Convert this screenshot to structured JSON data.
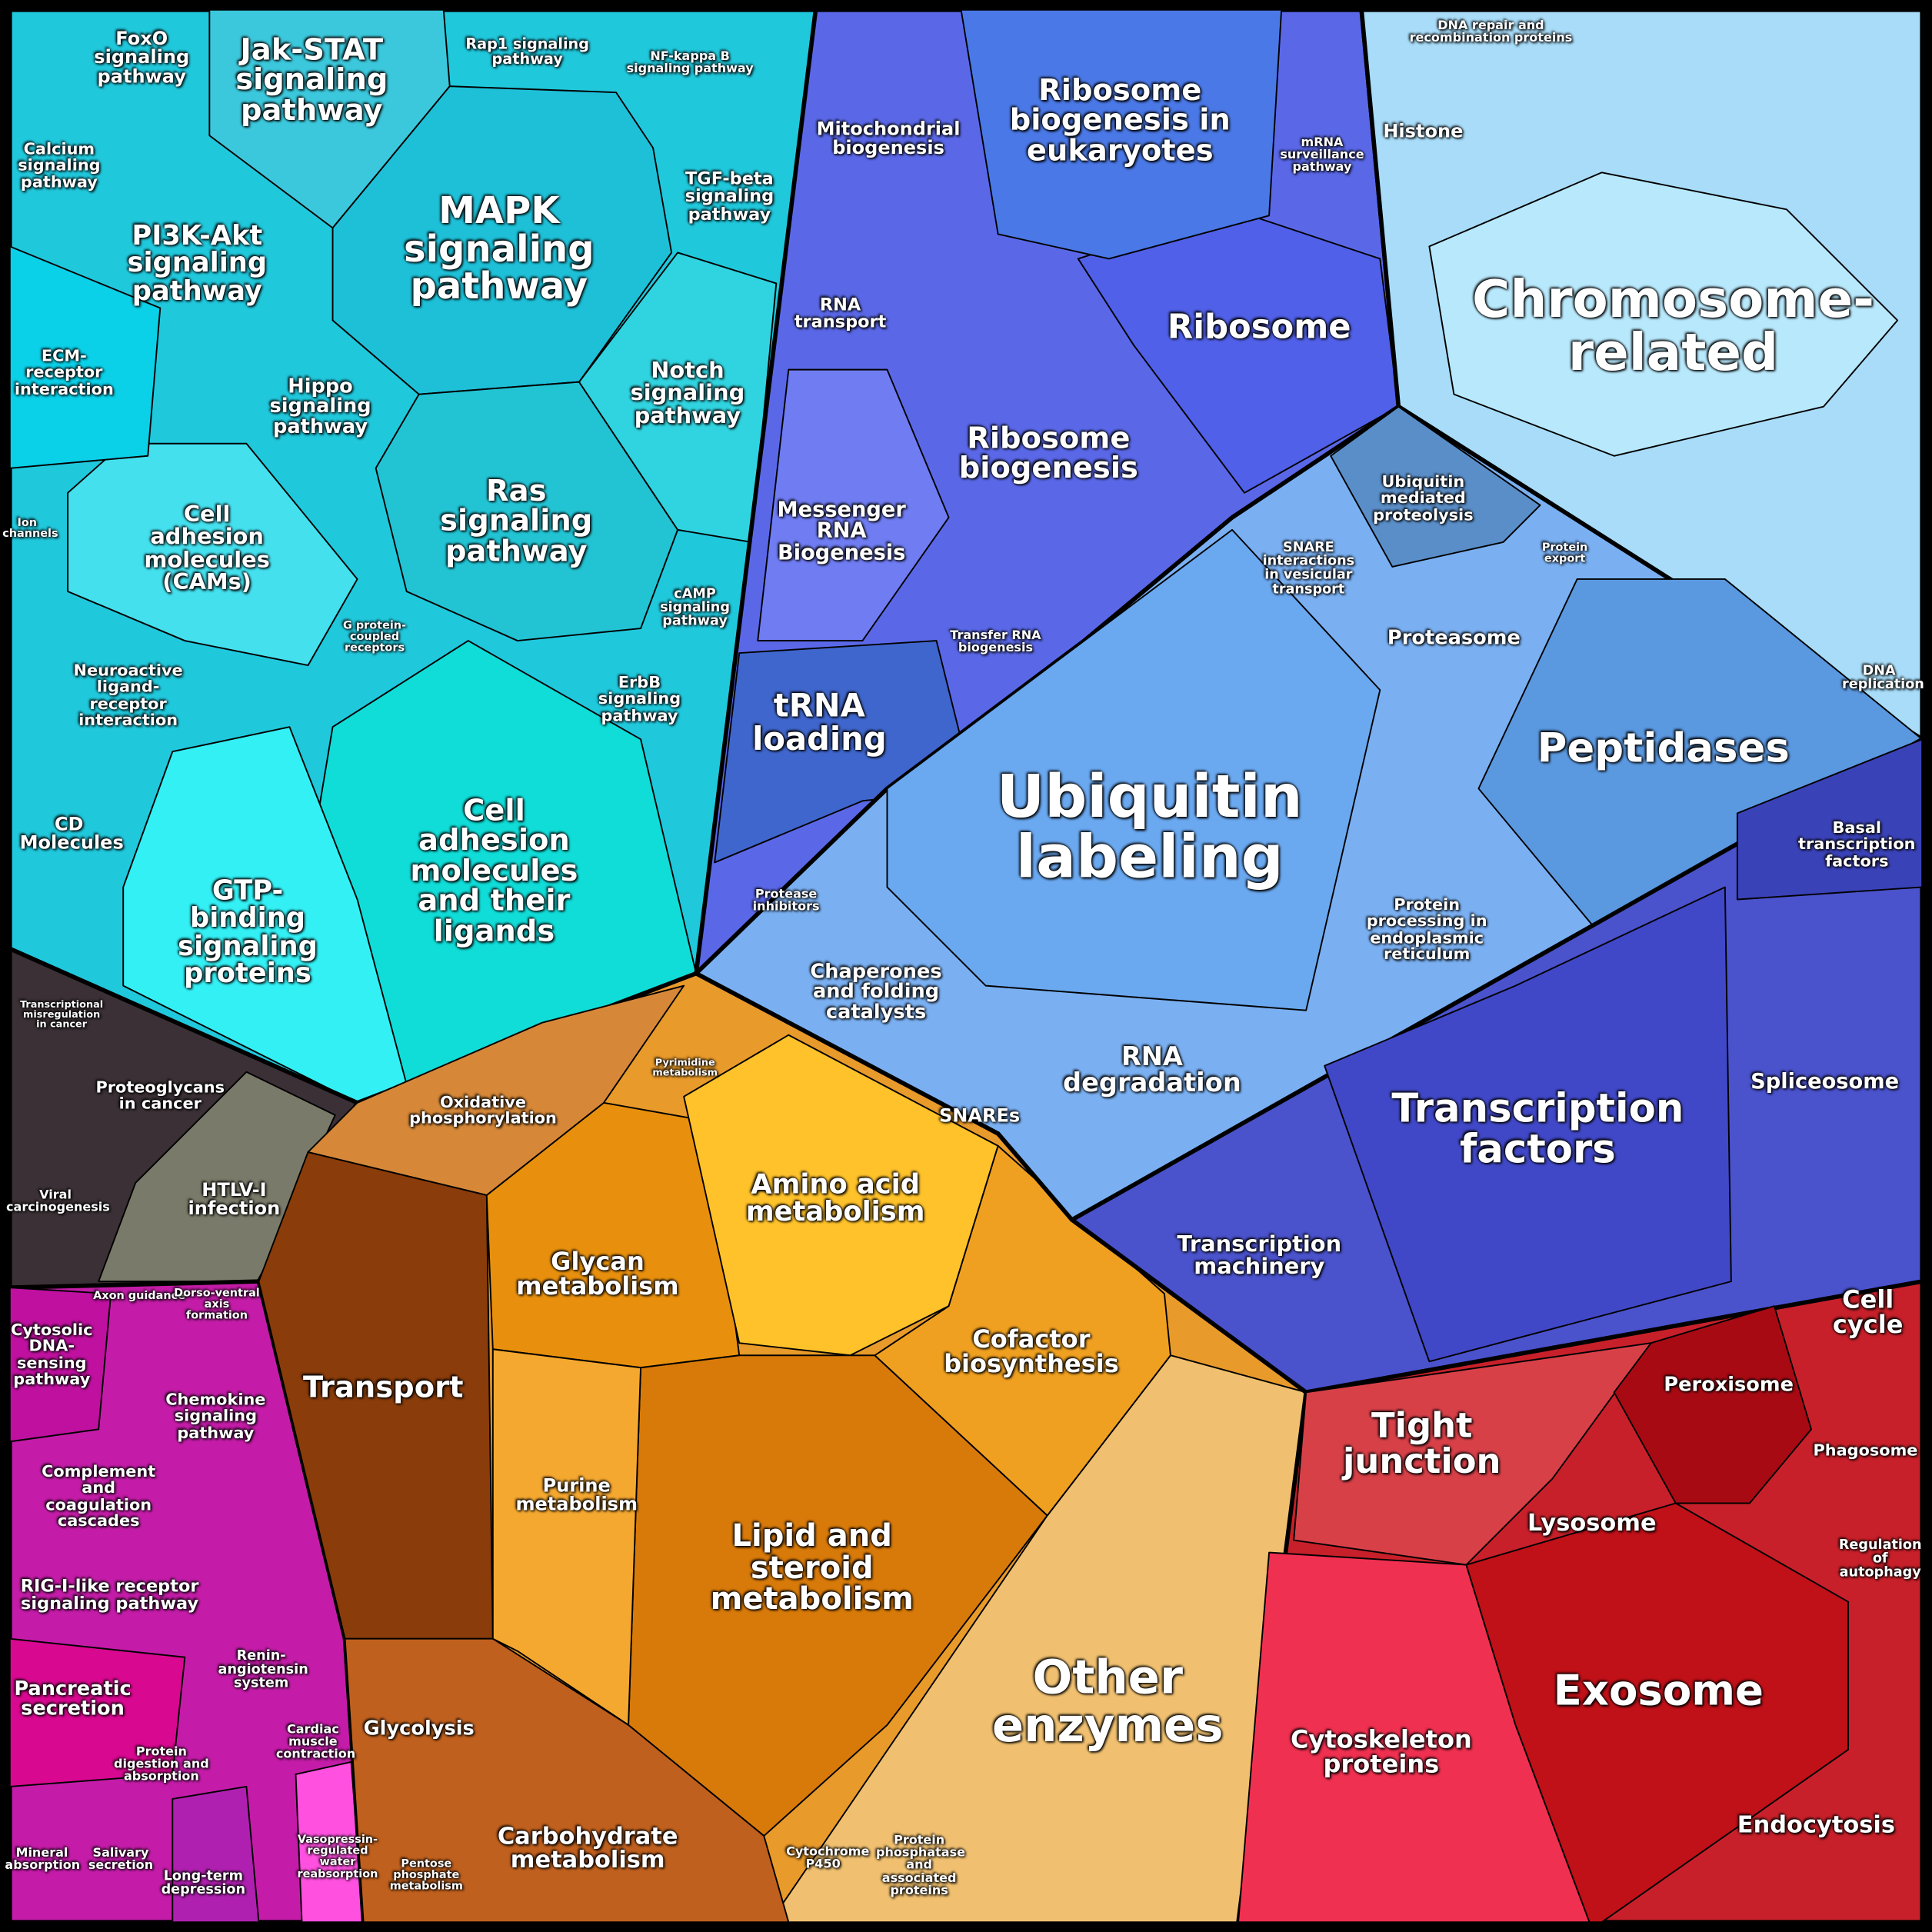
{
  "labels": [
    "FoxO signaling pathway",
    "Jak-STAT signaling pathway",
    "Rap1 signaling pathway",
    "NF-kappa B signaling pathway",
    "Calcium signaling pathway",
    "PI3K-Akt signaling pathway",
    "MAPK signaling pathway",
    "TGF-beta signaling pathway",
    "ECM-receptor interaction",
    "Hippo signaling pathway",
    "Notch signaling pathway",
    "Ras signaling pathway",
    "Cell adhesion molecules (CAMs)",
    "Ion channels",
    "cAMP signaling pathway",
    "G protein-coupled receptors",
    "Neuroactive ligand-receptor interaction",
    "ErbB signaling pathway",
    "CD Molecules",
    "Cell adhesion molecules and their ligands",
    "GTP-binding signaling proteins",
    "Transcriptional misregulation in cancer",
    "Proteoglycans in cancer",
    "HTLV-I infection",
    "Viral carcinogenesis",
    "Axon guidance",
    "Dorso-ventral axis formation",
    "Cytosolic DNA-sensing pathway",
    "Chemokine signaling pathway",
    "Complement and coagulation cascades",
    "RIG-I-like receptor signaling pathway",
    "Renin-angiotensin system",
    "Pancreatic secretion",
    "Cardiac muscle contraction",
    "Protein digestion and absorption",
    "Mineral absorption",
    "Salivary secretion",
    "Long-term depression",
    "Vasopressin-regulated water reabsorption",
    "Oxidative phosphorylation",
    "Pyrimidine metabolism",
    "Amino acid metabolism",
    "Glycan metabolism",
    "Transport",
    "Cofactor biosynthesis",
    "Purine metabolism",
    "Lipid and steroid metabolism",
    "Glycolysis",
    "Other enzymes",
    "Carbohydrate metabolism",
    "Pentose phosphate metabolism",
    "Cytochrome P450",
    "Protein phosphatase and associated proteins",
    "Mitochondrial biogenesis",
    "Ribosome biogenesis in eukaryotes",
    "mRNA surveillance pathway",
    "Histone",
    "DNA repair and recombination proteins",
    "Chromosome-related",
    "RNA transport",
    "Ribosome",
    "Ribosome biogenesis",
    "Messenger RNA Biogenesis",
    "Ubiquitin mediated proteolysis",
    "SNARE interactions in vesicular transport",
    "Protein export",
    "Transfer RNA biogenesis",
    "Proteasome",
    "DNA replication",
    "tRNA loading",
    "Peptidases",
    "Ubiquitin labeling",
    "Basal transcription factors",
    "Protease inhibitors",
    "Protein processing in endoplasmic reticulum",
    "Chaperones and folding catalysts",
    "RNA degradation",
    "SNAREs",
    "Transcription factors",
    "Spliceosome",
    "Transcription machinery",
    "Cell cycle",
    "Peroxisome",
    "Tight junction",
    "Phagosome",
    "Lysosome",
    "Regulation of autophagy",
    "Exosome",
    "Cytoskeleton proteins",
    "Endocytosis"
  ]
}
